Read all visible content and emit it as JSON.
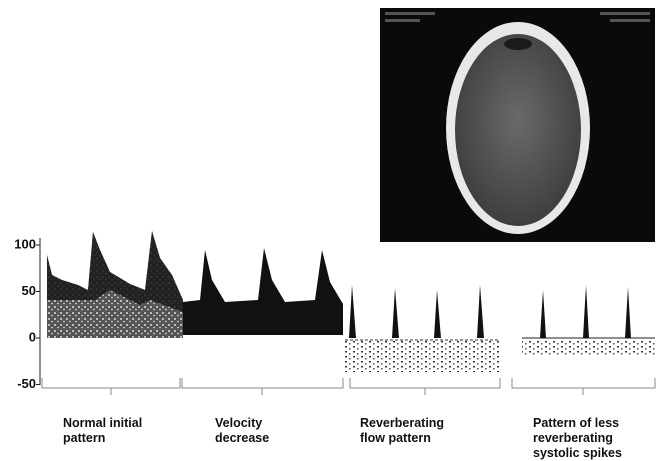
{
  "axis": {
    "ticks": [
      100,
      50,
      0,
      -50
    ]
  },
  "stages": [
    {
      "lines": [
        "Normal initial",
        "pattern"
      ]
    },
    {
      "lines": [
        "Velocity",
        "decrease"
      ]
    },
    {
      "lines": [
        "Reverberating",
        "flow pattern"
      ]
    },
    {
      "lines": [
        "Pattern of less",
        "reverberating",
        "systolic spikes"
      ]
    }
  ]
}
